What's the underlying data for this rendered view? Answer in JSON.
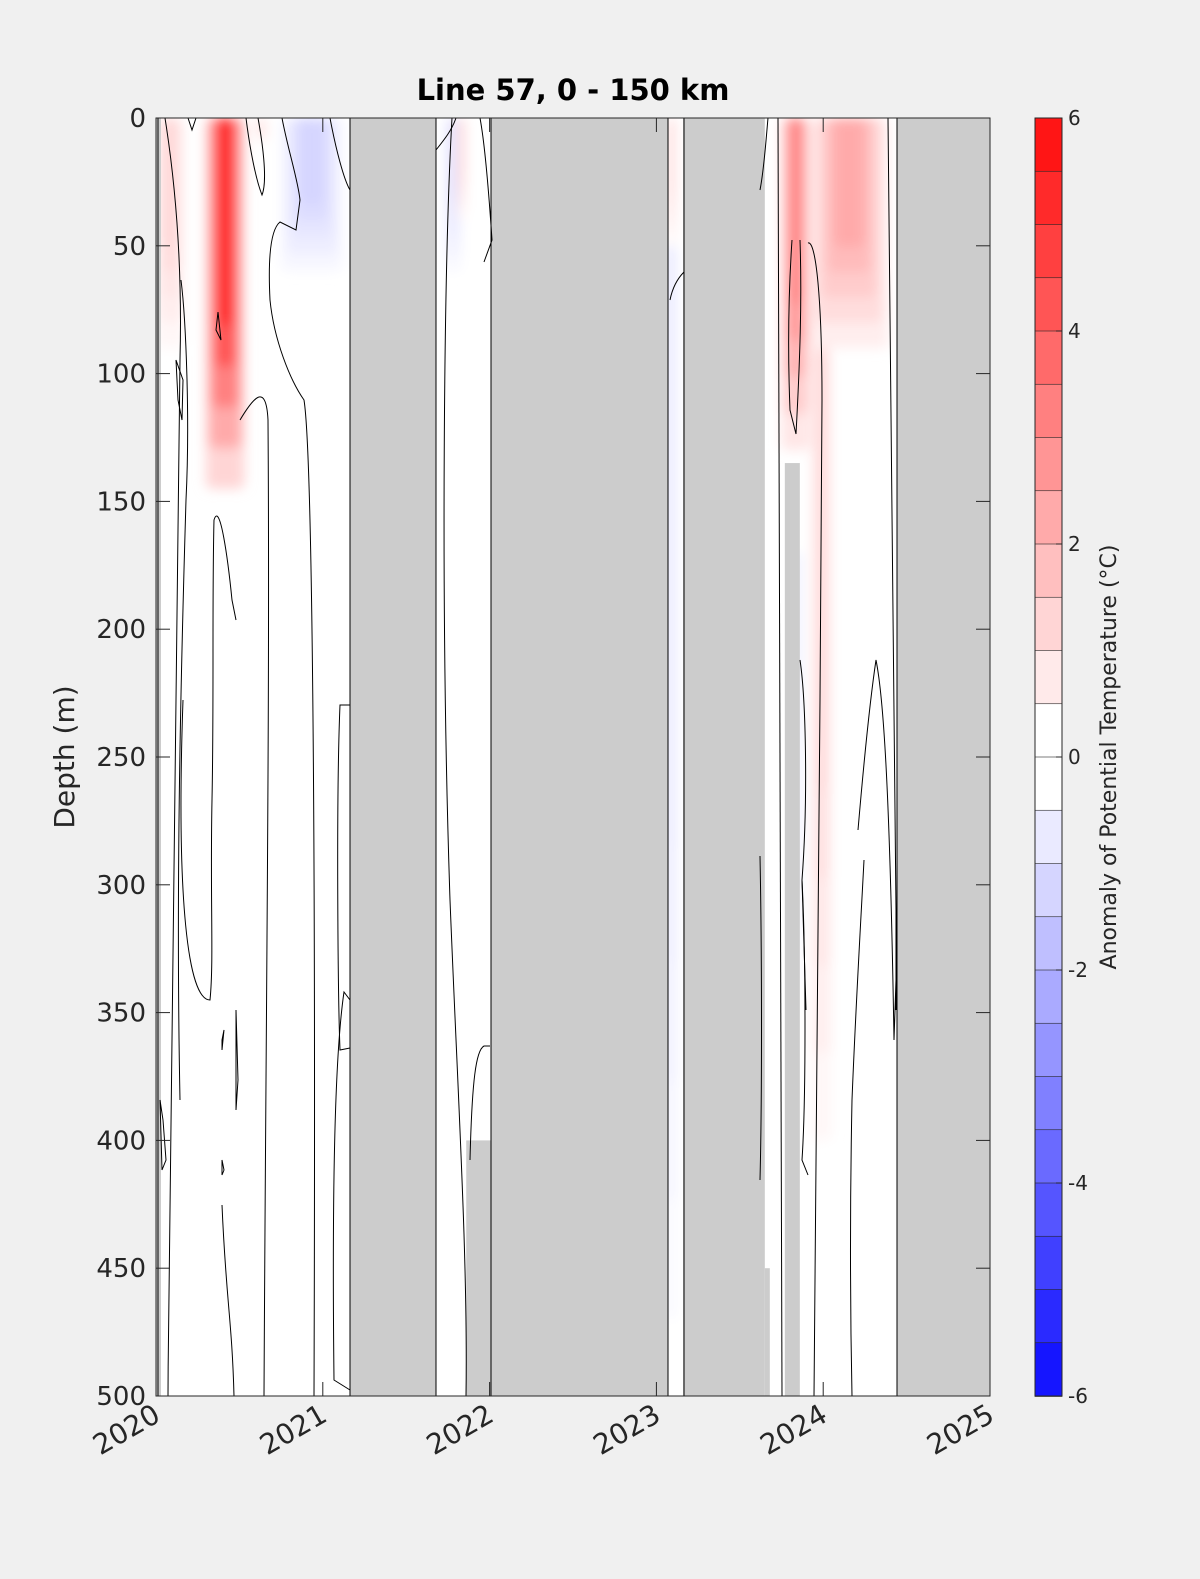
{
  "chart_data": {
    "type": "heatmap",
    "title": "Line 57, 0 - 150 km",
    "xlabel": "",
    "ylabel": "Depth (m)",
    "x_ticks": [
      "2020",
      "2021",
      "2022",
      "2023",
      "2024",
      "2025"
    ],
    "y_ticks": [
      "0",
      "50",
      "100",
      "150",
      "200",
      "250",
      "300",
      "350",
      "400",
      "450",
      "500"
    ],
    "xlim": [
      2020,
      2025
    ],
    "ylim": [
      0,
      500
    ],
    "y_reversed": true,
    "grid": false,
    "colorbar": {
      "label": "Anomaly of Potential Temperature (°C)",
      "ticks": [
        "6",
        "4",
        "2",
        "0",
        "-2",
        "-4",
        "-6"
      ],
      "range": [
        -6,
        6
      ],
      "levels": 24,
      "colormap": "blue-white-red",
      "negative_color": "#0000ff",
      "zero_color": "#ffffff",
      "positive_color": "#ff0000"
    },
    "no_data_color": "#cccccc",
    "no_data_periods": [
      {
        "start": 2021.16,
        "end": 2021.68
      },
      {
        "start": 2022.01,
        "end": 2023.07
      },
      {
        "start": 2023.16,
        "end": 2023.65
      },
      {
        "start": 2024.44,
        "end": 2025.0
      }
    ],
    "no_data_partial": [
      {
        "start": 2021.86,
        "end": 2022.01,
        "depth_from": 400,
        "depth_to": 500
      },
      {
        "start": 2023.77,
        "end": 2023.86,
        "depth_from": 135,
        "depth_to": 500
      },
      {
        "start": 2023.65,
        "end": 2023.68,
        "depth_from": 450,
        "depth_to": 500
      },
      {
        "start": 2020.0,
        "end": 2020.03,
        "depth_from": 0,
        "depth_to": 500
      }
    ],
    "anomaly_features": [
      {
        "x_start": 2020.3,
        "x_end": 2020.53,
        "depth_top": 0,
        "depth_bottom": 145,
        "peak": 5.0
      },
      {
        "x_start": 2020.0,
        "x_end": 2020.17,
        "depth_top": 0,
        "depth_bottom": 90,
        "peak": 1.0
      },
      {
        "x_start": 2020.6,
        "x_end": 2020.66,
        "depth_top": 0,
        "depth_bottom": 10,
        "peak": 1.0
      },
      {
        "x_start": 2020.75,
        "x_end": 2021.12,
        "depth_top": 0,
        "depth_bottom": 60,
        "peak": -1.0
      },
      {
        "x_start": 2021.73,
        "x_end": 2021.83,
        "depth_top": 0,
        "depth_bottom": 60,
        "peak": -0.8
      },
      {
        "x_start": 2021.8,
        "x_end": 2021.86,
        "depth_top": 0,
        "depth_bottom": 40,
        "peak": 1.0
      },
      {
        "x_start": 2023.06,
        "x_end": 2023.12,
        "depth_top": 0,
        "depth_bottom": 50,
        "peak": 1.0
      },
      {
        "x_start": 2023.05,
        "x_end": 2023.12,
        "depth_top": 50,
        "depth_bottom": 470,
        "peak": -0.7
      },
      {
        "x_start": 2023.75,
        "x_end": 2023.92,
        "depth_top": 0,
        "depth_bottom": 130,
        "peak": 3.0
      },
      {
        "x_start": 2023.92,
        "x_end": 2024.39,
        "depth_top": 0,
        "depth_bottom": 90,
        "peak": 2.0
      },
      {
        "x_start": 2023.93,
        "x_end": 2024.05,
        "depth_top": 90,
        "depth_bottom": 400,
        "peak": 1.0
      },
      {
        "x_start": 2023.82,
        "x_end": 2023.87,
        "depth_top": 170,
        "depth_bottom": 340,
        "peak": -0.6
      }
    ]
  }
}
